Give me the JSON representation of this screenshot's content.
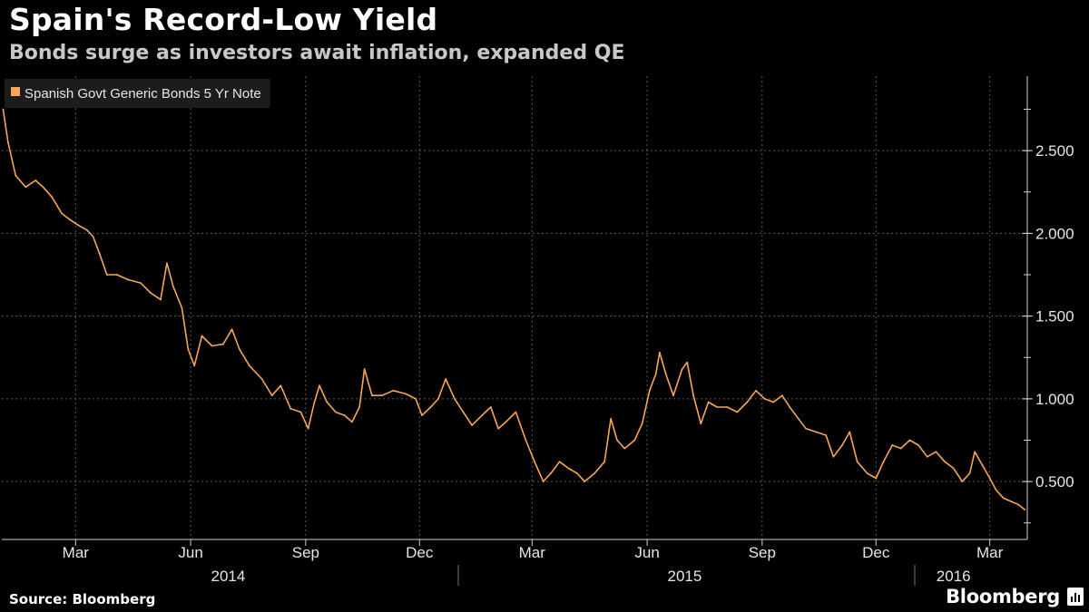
{
  "header": {
    "title": "Spain's Record-Low Yield",
    "subtitle": "Bonds surge as investors await inflation, expanded QE"
  },
  "footer": {
    "source": "Source: Bloomberg",
    "brand": "Bloomberg"
  },
  "colors": {
    "background": "#000000",
    "series": "#f6a755",
    "grid": "#5a5a5a",
    "legend_bg": "#1c1c1c"
  },
  "chart_data": {
    "type": "line",
    "legend": {
      "placement": "top-left",
      "entries": [
        "Spanish Govt Generic Bonds 5 Yr Note"
      ]
    },
    "y_axis": {
      "side": "right",
      "ylim": [
        0.15,
        2.95
      ],
      "ticks": [
        "0.500",
        "1.000",
        "1.500",
        "2.000",
        "2.500"
      ],
      "tick_values": [
        0.5,
        1.0,
        1.5,
        2.0,
        2.5
      ]
    },
    "x_axis": {
      "xlim": [
        "2014-01-01",
        "2016-03-31"
      ],
      "month_ticks": [
        {
          "label": "Mar",
          "date": "2014-03-01"
        },
        {
          "label": "Jun",
          "date": "2014-06-01"
        },
        {
          "label": "Sep",
          "date": "2014-09-01"
        },
        {
          "label": "Dec",
          "date": "2014-12-01"
        },
        {
          "label": "Mar",
          "date": "2015-03-01"
        },
        {
          "label": "Jun",
          "date": "2015-06-01"
        },
        {
          "label": "Sep",
          "date": "2015-09-01"
        },
        {
          "label": "Dec",
          "date": "2015-12-01"
        },
        {
          "label": "Mar",
          "date": "2016-03-01"
        }
      ],
      "year_labels": [
        {
          "label": "2014",
          "date": "2014-07-01"
        },
        {
          "label": "2015",
          "date": "2015-07-01"
        },
        {
          "label": "2016",
          "date": "2016-02-01"
        }
      ],
      "year_dividers": [
        "2015-01-01",
        "2016-01-01"
      ]
    },
    "grid": true,
    "series": [
      {
        "name": "Spanish Govt Generic Bonds 5 Yr Note",
        "points": [
          [
            "2014-01-02",
            2.75
          ],
          [
            "2014-01-06",
            2.55
          ],
          [
            "2014-01-12",
            2.35
          ],
          [
            "2014-01-20",
            2.28
          ],
          [
            "2014-01-28",
            2.32
          ],
          [
            "2014-02-03",
            2.28
          ],
          [
            "2014-02-10",
            2.22
          ],
          [
            "2014-02-18",
            2.12
          ],
          [
            "2014-02-25",
            2.08
          ],
          [
            "2014-03-03",
            2.05
          ],
          [
            "2014-03-10",
            2.02
          ],
          [
            "2014-03-15",
            1.98
          ],
          [
            "2014-03-20",
            1.88
          ],
          [
            "2014-03-26",
            1.75
          ],
          [
            "2014-04-03",
            1.75
          ],
          [
            "2014-04-12",
            1.72
          ],
          [
            "2014-04-22",
            1.7
          ],
          [
            "2014-04-30",
            1.64
          ],
          [
            "2014-05-08",
            1.6
          ],
          [
            "2014-05-13",
            1.82
          ],
          [
            "2014-05-18",
            1.68
          ],
          [
            "2014-05-25",
            1.55
          ],
          [
            "2014-05-30",
            1.3
          ],
          [
            "2014-06-04",
            1.2
          ],
          [
            "2014-06-10",
            1.38
          ],
          [
            "2014-06-18",
            1.32
          ],
          [
            "2014-06-27",
            1.33
          ],
          [
            "2014-07-04",
            1.42
          ],
          [
            "2014-07-10",
            1.3
          ],
          [
            "2014-07-18",
            1.2
          ],
          [
            "2014-07-28",
            1.12
          ],
          [
            "2014-08-05",
            1.02
          ],
          [
            "2014-08-12",
            1.08
          ],
          [
            "2014-08-20",
            0.94
          ],
          [
            "2014-08-28",
            0.92
          ],
          [
            "2014-09-03",
            0.82
          ],
          [
            "2014-09-08",
            0.98
          ],
          [
            "2014-09-12",
            1.08
          ],
          [
            "2014-09-18",
            0.98
          ],
          [
            "2014-09-25",
            0.92
          ],
          [
            "2014-10-02",
            0.9
          ],
          [
            "2014-10-08",
            0.86
          ],
          [
            "2014-10-14",
            0.95
          ],
          [
            "2014-10-18",
            1.18
          ],
          [
            "2014-10-24",
            1.02
          ],
          [
            "2014-11-01",
            1.02
          ],
          [
            "2014-11-10",
            1.05
          ],
          [
            "2014-11-20",
            1.03
          ],
          [
            "2014-11-28",
            1.0
          ],
          [
            "2014-12-03",
            0.9
          ],
          [
            "2014-12-10",
            0.95
          ],
          [
            "2014-12-16",
            1.0
          ],
          [
            "2014-12-22",
            1.12
          ],
          [
            "2014-12-29",
            1.0
          ],
          [
            "2015-01-05",
            0.92
          ],
          [
            "2015-01-12",
            0.84
          ],
          [
            "2015-01-20",
            0.9
          ],
          [
            "2015-01-27",
            0.95
          ],
          [
            "2015-02-02",
            0.82
          ],
          [
            "2015-02-08",
            0.86
          ],
          [
            "2015-02-16",
            0.92
          ],
          [
            "2015-02-24",
            0.75
          ],
          [
            "2015-03-03",
            0.62
          ],
          [
            "2015-03-10",
            0.5
          ],
          [
            "2015-03-16",
            0.55
          ],
          [
            "2015-03-23",
            0.62
          ],
          [
            "2015-03-30",
            0.58
          ],
          [
            "2015-04-06",
            0.55
          ],
          [
            "2015-04-12",
            0.5
          ],
          [
            "2015-04-20",
            0.55
          ],
          [
            "2015-04-28",
            0.62
          ],
          [
            "2015-05-03",
            0.88
          ],
          [
            "2015-05-08",
            0.75
          ],
          [
            "2015-05-14",
            0.7
          ],
          [
            "2015-05-22",
            0.75
          ],
          [
            "2015-05-28",
            0.85
          ],
          [
            "2015-06-03",
            1.05
          ],
          [
            "2015-06-08",
            1.15
          ],
          [
            "2015-06-11",
            1.28
          ],
          [
            "2015-06-16",
            1.15
          ],
          [
            "2015-06-22",
            1.02
          ],
          [
            "2015-06-29",
            1.18
          ],
          [
            "2015-07-03",
            1.22
          ],
          [
            "2015-07-08",
            1.02
          ],
          [
            "2015-07-14",
            0.85
          ],
          [
            "2015-07-20",
            0.98
          ],
          [
            "2015-07-27",
            0.95
          ],
          [
            "2015-08-04",
            0.95
          ],
          [
            "2015-08-12",
            0.92
          ],
          [
            "2015-08-20",
            0.98
          ],
          [
            "2015-08-27",
            1.05
          ],
          [
            "2015-09-03",
            1.0
          ],
          [
            "2015-09-10",
            0.98
          ],
          [
            "2015-09-17",
            1.02
          ],
          [
            "2015-09-23",
            0.95
          ],
          [
            "2015-09-30",
            0.88
          ],
          [
            "2015-10-06",
            0.82
          ],
          [
            "2015-10-14",
            0.8
          ],
          [
            "2015-10-22",
            0.78
          ],
          [
            "2015-10-28",
            0.65
          ],
          [
            "2015-11-04",
            0.72
          ],
          [
            "2015-11-10",
            0.8
          ],
          [
            "2015-11-16",
            0.62
          ],
          [
            "2015-11-24",
            0.55
          ],
          [
            "2015-12-01",
            0.52
          ],
          [
            "2015-12-07",
            0.62
          ],
          [
            "2015-12-14",
            0.72
          ],
          [
            "2015-12-21",
            0.7
          ],
          [
            "2015-12-28",
            0.75
          ],
          [
            "2016-01-04",
            0.72
          ],
          [
            "2016-01-11",
            0.65
          ],
          [
            "2016-01-18",
            0.68
          ],
          [
            "2016-01-25",
            0.62
          ],
          [
            "2016-02-01",
            0.58
          ],
          [
            "2016-02-08",
            0.5
          ],
          [
            "2016-02-14",
            0.55
          ],
          [
            "2016-02-18",
            0.68
          ],
          [
            "2016-02-24",
            0.6
          ],
          [
            "2016-03-01",
            0.52
          ],
          [
            "2016-03-06",
            0.45
          ],
          [
            "2016-03-12",
            0.4
          ],
          [
            "2016-03-18",
            0.38
          ],
          [
            "2016-03-24",
            0.36
          ],
          [
            "2016-03-29",
            0.33
          ]
        ]
      }
    ]
  }
}
